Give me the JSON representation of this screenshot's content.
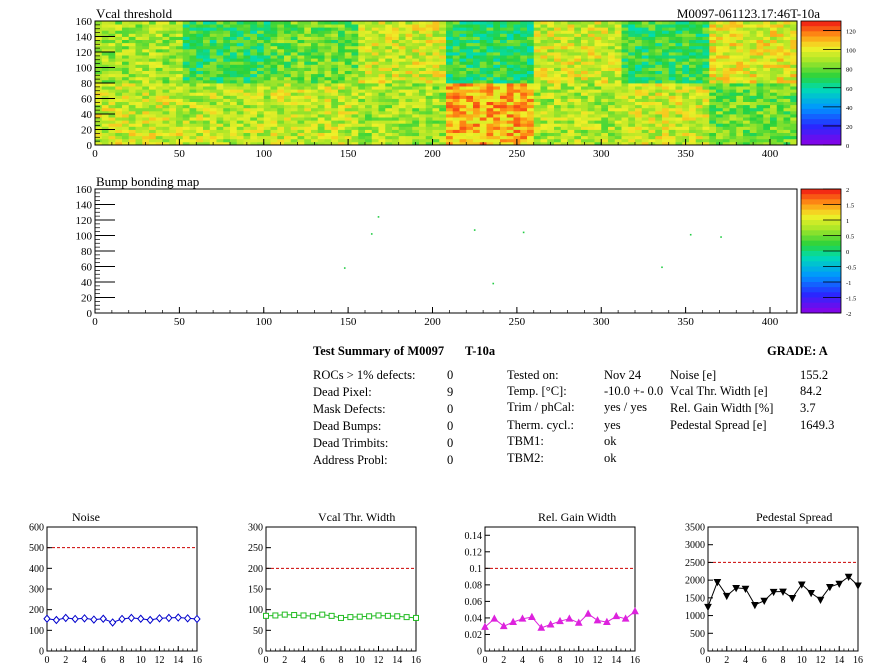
{
  "header": {
    "module_id": "M0097-061123.17:46T-10a"
  },
  "summary": {
    "title": "Test Summary of M0097",
    "test": "T-10a",
    "grade": "GRADE:  A",
    "left": [
      {
        "label": "ROCs > 1% defects:",
        "value": "0"
      },
      {
        "label": "Dead Pixel:",
        "value": "9"
      },
      {
        "label": "Mask Defects:",
        "value": "0"
      },
      {
        "label": "Dead Bumps:",
        "value": "0"
      },
      {
        "label": "Dead Trimbits:",
        "value": "0"
      },
      {
        "label": "Address Probl:",
        "value": "0"
      }
    ],
    "middle": [
      {
        "label": "Tested on:",
        "value": "Nov 24"
      },
      {
        "label": "Temp. [°C]:",
        "value": "-10.0 +- 0.0"
      },
      {
        "label": "Trim / phCal:",
        "value": "yes / yes"
      },
      {
        "label": "Therm. cycl.:",
        "value": "yes"
      },
      {
        "label": "TBM1:",
        "value": "ok"
      },
      {
        "label": "TBM2:",
        "value": "ok"
      }
    ],
    "right": [
      {
        "label": "Noise [e]",
        "value": "155.2"
      },
      {
        "label": "Vcal Thr. Width [e]",
        "value": "84.2"
      },
      {
        "label": "Rel. Gain Width [%]",
        "value": "3.7"
      },
      {
        "label": "Pedestal Spread [e]",
        "value": "1649.3"
      }
    ]
  },
  "chart_data": [
    {
      "type": "heatmap",
      "title": "Vcal threshold",
      "xlim": [
        0,
        416
      ],
      "ylim": [
        0,
        160
      ],
      "xticks": [
        "0",
        "50",
        "100",
        "150",
        "200",
        "250",
        "300",
        "350",
        "400"
      ],
      "yticks": [
        "0",
        "20",
        "40",
        "60",
        "80",
        "100",
        "120",
        "140",
        "160"
      ],
      "zlim": [
        0,
        130
      ],
      "zticks": [
        "0",
        "20",
        "40",
        "60",
        "80",
        "100",
        "120"
      ],
      "roc_mean_values_top": [
        88,
        72,
        80,
        95,
        70,
        95,
        72,
        98
      ],
      "roc_mean_values_bottom": [
        95,
        92,
        93,
        88,
        110,
        90,
        95,
        80
      ]
    },
    {
      "type": "scatter",
      "title": "Bump bonding map",
      "xlim": [
        0,
        416
      ],
      "ylim": [
        0,
        160
      ],
      "xticks": [
        "0",
        "50",
        "100",
        "150",
        "200",
        "250",
        "300",
        "350",
        "400"
      ],
      "yticks": [
        "0",
        "20",
        "40",
        "60",
        "80",
        "100",
        "120",
        "140",
        "160"
      ],
      "zlim": [
        -2,
        2
      ],
      "zticks": [
        "2",
        "1.5",
        "1",
        "0.5",
        "0",
        "-0.5",
        "-1",
        "-1.5",
        "-2"
      ],
      "points": [
        [
          148,
          58
        ],
        [
          164,
          102
        ],
        [
          168,
          124
        ],
        [
          225,
          107
        ],
        [
          236,
          38
        ],
        [
          254,
          104
        ],
        [
          336,
          59
        ],
        [
          353,
          101
        ],
        [
          371,
          98
        ]
      ]
    },
    {
      "type": "line",
      "title": "Noise",
      "xlim": [
        0,
        16
      ],
      "ylim": [
        0,
        600
      ],
      "xticks": [
        "0",
        "2",
        "4",
        "6",
        "8",
        "10",
        "12",
        "14",
        "16"
      ],
      "yticks": [
        "0",
        "100",
        "200",
        "300",
        "400",
        "500",
        "600"
      ],
      "threshold": 500,
      "color": "#0000cc",
      "marker": "diamond",
      "values": [
        156,
        150,
        160,
        155,
        158,
        152,
        156,
        138,
        155,
        160,
        156,
        150,
        158,
        160,
        162,
        158,
        155
      ]
    },
    {
      "type": "line",
      "title": "Vcal Thr. Width",
      "xlim": [
        0,
        16
      ],
      "ylim": [
        0,
        300
      ],
      "xticks": [
        "0",
        "2",
        "4",
        "6",
        "8",
        "10",
        "12",
        "14",
        "16"
      ],
      "yticks": [
        "0",
        "50",
        "100",
        "150",
        "200",
        "250",
        "300"
      ],
      "threshold": 200,
      "color": "#22bb22",
      "marker": "square",
      "values": [
        85,
        86,
        88,
        87,
        86,
        84,
        88,
        85,
        80,
        82,
        83,
        84,
        86,
        85,
        84,
        82,
        80
      ]
    },
    {
      "type": "line",
      "title": "Rel. Gain Width",
      "xlim": [
        0,
        16
      ],
      "ylim": [
        0,
        0.15
      ],
      "xticks": [
        "0",
        "2",
        "4",
        "6",
        "8",
        "10",
        "12",
        "14",
        "16"
      ],
      "yticks": [
        "0",
        "0.02",
        "0.04",
        "0.06",
        "0.08",
        "0.1",
        "0.12",
        "0.14"
      ],
      "threshold": 0.1,
      "color": "#dd22dd",
      "marker": "triangle",
      "values": [
        0.029,
        0.039,
        0.03,
        0.035,
        0.039,
        0.041,
        0.028,
        0.032,
        0.036,
        0.039,
        0.034,
        0.045,
        0.037,
        0.035,
        0.042,
        0.039,
        0.048
      ]
    },
    {
      "type": "line",
      "title": "Pedestal Spread",
      "xlim": [
        0,
        16
      ],
      "ylim": [
        0,
        3500
      ],
      "xticks": [
        "0",
        "2",
        "4",
        "6",
        "8",
        "10",
        "12",
        "14",
        "16"
      ],
      "yticks": [
        "0",
        "500",
        "1000",
        "1500",
        "2000",
        "2500",
        "3000",
        "3500"
      ],
      "threshold": 2500,
      "color": "#000000",
      "marker": "triangle-down",
      "values": [
        1250,
        1950,
        1560,
        1780,
        1760,
        1300,
        1420,
        1670,
        1680,
        1500,
        1880,
        1640,
        1450,
        1810,
        1900,
        2100,
        1850
      ]
    }
  ]
}
